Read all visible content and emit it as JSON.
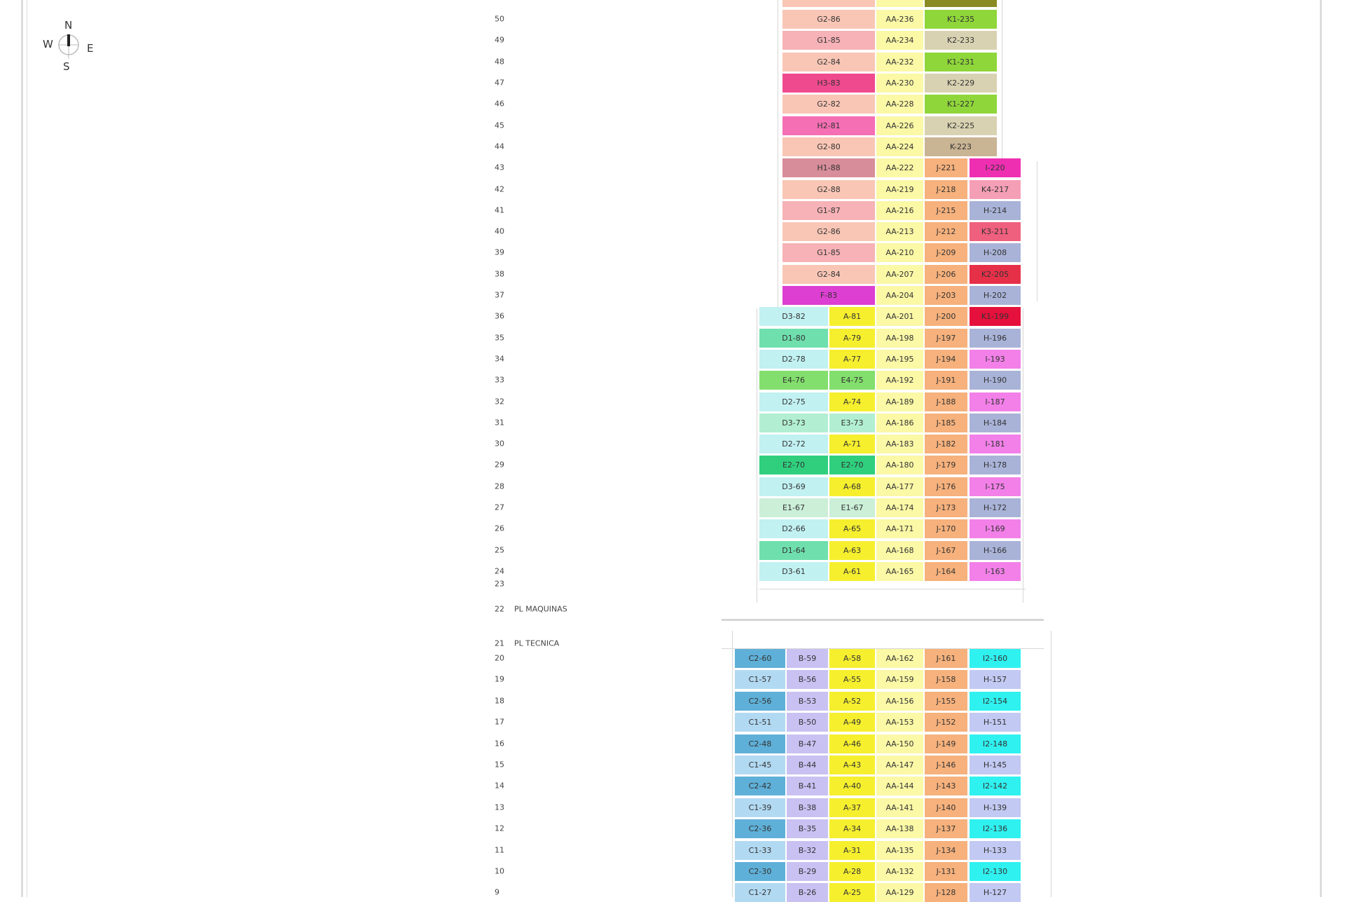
{
  "compass": {
    "n": "N",
    "s": "S",
    "e": "E",
    "w": "W"
  },
  "colors": {
    "G2": "#f9c6b6",
    "G1": "#f6b2b6",
    "H3": "#f04a8e",
    "H2": "#f56fb4",
    "H1": "#d88d9a",
    "F": "#dd3fd2",
    "AA": "#fbf8a6",
    "K1": "#8fd63a",
    "K2": "#d9d2b2",
    "K": "#c9b494",
    "KOL": "#8a8a22",
    "J": "#f6b17c",
    "I": "#ee2fb2",
    "K4": "#f59fb6",
    "H": "#a9b3d8",
    "K3": "#ef5f7e",
    "K2R": "#e63048",
    "K1R": "#e5103c",
    "D": "#c2f1f2",
    "D1": "#6fdfae",
    "E4": "#83df6d",
    "E3": "#b2efd2",
    "E2": "#2fcf7e",
    "E1": "#cbefd7",
    "A": "#f6ef2e",
    "IP": "#f280e8",
    "C2": "#5fb0d8",
    "C1": "#b2d9f2",
    "B": "#c9c1f2",
    "I2": "#2ff1f0",
    "HL": "#c2c9f2"
  },
  "floors": [
    {
      "label": "",
      "section": "top",
      "units": [
        {
          "code": "",
          "color": "G2"
        },
        {
          "code": "",
          "color": "AA"
        },
        {
          "code": "",
          "color": "KOL"
        }
      ]
    },
    {
      "label": "50",
      "section": "top",
      "units": [
        {
          "code": "G2-86",
          "color": "G2"
        },
        {
          "code": "AA-236",
          "color": "AA"
        },
        {
          "code": "K1-235",
          "color": "K1"
        }
      ]
    },
    {
      "label": "49",
      "section": "top",
      "units": [
        {
          "code": "G1-85",
          "color": "G1"
        },
        {
          "code": "AA-234",
          "color": "AA"
        },
        {
          "code": "K2-233",
          "color": "K2"
        }
      ]
    },
    {
      "label": "48",
      "section": "top",
      "units": [
        {
          "code": "G2-84",
          "color": "G2"
        },
        {
          "code": "AA-232",
          "color": "AA"
        },
        {
          "code": "K1-231",
          "color": "K1"
        }
      ]
    },
    {
      "label": "47",
      "section": "top",
      "units": [
        {
          "code": "H3-83",
          "color": "H3"
        },
        {
          "code": "AA-230",
          "color": "AA"
        },
        {
          "code": "K2-229",
          "color": "K2"
        }
      ]
    },
    {
      "label": "46",
      "section": "top",
      "units": [
        {
          "code": "G2-82",
          "color": "G2"
        },
        {
          "code": "AA-228",
          "color": "AA"
        },
        {
          "code": "K1-227",
          "color": "K1"
        }
      ]
    },
    {
      "label": "45",
      "section": "top",
      "units": [
        {
          "code": "H2-81",
          "color": "H2"
        },
        {
          "code": "AA-226",
          "color": "AA"
        },
        {
          "code": "K2-225",
          "color": "K2"
        }
      ]
    },
    {
      "label": "44",
      "section": "top",
      "units": [
        {
          "code": "G2-80",
          "color": "G2"
        },
        {
          "code": "AA-224",
          "color": "AA"
        },
        {
          "code": "K-223",
          "color": "K"
        }
      ]
    },
    {
      "label": "43",
      "section": "upper",
      "units": [
        {
          "code": "H1-88",
          "color": "H1"
        },
        {
          "code": "AA-222",
          "color": "AA"
        },
        {
          "code": "J-221",
          "color": "J"
        },
        {
          "code": "I-220",
          "color": "I"
        }
      ]
    },
    {
      "label": "42",
      "section": "upper",
      "units": [
        {
          "code": "G2-88",
          "color": "G2"
        },
        {
          "code": "AA-219",
          "color": "AA"
        },
        {
          "code": "J-218",
          "color": "J"
        },
        {
          "code": "K4-217",
          "color": "K4"
        }
      ]
    },
    {
      "label": "41",
      "section": "upper",
      "units": [
        {
          "code": "G1-87",
          "color": "G1"
        },
        {
          "code": "AA-216",
          "color": "AA"
        },
        {
          "code": "J-215",
          "color": "J"
        },
        {
          "code": "H-214",
          "color": "H"
        }
      ]
    },
    {
      "label": "40",
      "section": "upper",
      "units": [
        {
          "code": "G2-86",
          "color": "G2"
        },
        {
          "code": "AA-213",
          "color": "AA"
        },
        {
          "code": "J-212",
          "color": "J"
        },
        {
          "code": "K3-211",
          "color": "K3"
        }
      ]
    },
    {
      "label": "39",
      "section": "upper",
      "units": [
        {
          "code": "G1-85",
          "color": "G1"
        },
        {
          "code": "AA-210",
          "color": "AA"
        },
        {
          "code": "J-209",
          "color": "J"
        },
        {
          "code": "H-208",
          "color": "H"
        }
      ]
    },
    {
      "label": "38",
      "section": "upper",
      "units": [
        {
          "code": "G2-84",
          "color": "G2"
        },
        {
          "code": "AA-207",
          "color": "AA"
        },
        {
          "code": "J-206",
          "color": "J"
        },
        {
          "code": "K2-205",
          "color": "K2R"
        }
      ]
    },
    {
      "label": "37",
      "section": "upper",
      "units": [
        {
          "code": "F-83",
          "color": "F"
        },
        {
          "code": "AA-204",
          "color": "AA"
        },
        {
          "code": "J-203",
          "color": "J"
        },
        {
          "code": "H-202",
          "color": "H"
        }
      ]
    },
    {
      "label": "36",
      "section": "middle",
      "units": [
        {
          "code": "D3-82",
          "color": "D"
        },
        {
          "code": "A-81",
          "color": "A"
        },
        {
          "code": "AA-201",
          "color": "AA"
        },
        {
          "code": "J-200",
          "color": "J"
        },
        {
          "code": "K1-199",
          "color": "K1R"
        }
      ]
    },
    {
      "label": "35",
      "section": "middle",
      "units": [
        {
          "code": "D1-80",
          "color": "D1"
        },
        {
          "code": "A-79",
          "color": "A"
        },
        {
          "code": "AA-198",
          "color": "AA"
        },
        {
          "code": "J-197",
          "color": "J"
        },
        {
          "code": "H-196",
          "color": "H"
        }
      ]
    },
    {
      "label": "34",
      "section": "middle",
      "units": [
        {
          "code": "D2-78",
          "color": "D"
        },
        {
          "code": "A-77",
          "color": "A"
        },
        {
          "code": "AA-195",
          "color": "AA"
        },
        {
          "code": "J-194",
          "color": "J"
        },
        {
          "code": "I-193",
          "color": "IP"
        }
      ]
    },
    {
      "label": "33",
      "section": "middle",
      "units": [
        {
          "code": "E4-76",
          "color": "E4"
        },
        {
          "code": "E4-75",
          "color": "E4"
        },
        {
          "code": "AA-192",
          "color": "AA"
        },
        {
          "code": "J-191",
          "color": "J"
        },
        {
          "code": "H-190",
          "color": "H"
        }
      ]
    },
    {
      "label": "32",
      "section": "middle",
      "units": [
        {
          "code": "D2-75",
          "color": "D"
        },
        {
          "code": "A-74",
          "color": "A"
        },
        {
          "code": "AA-189",
          "color": "AA"
        },
        {
          "code": "J-188",
          "color": "J"
        },
        {
          "code": "I-187",
          "color": "IP"
        }
      ]
    },
    {
      "label": "31",
      "section": "middle",
      "units": [
        {
          "code": "D3-73",
          "color": "E3"
        },
        {
          "code": "E3-73",
          "color": "E3"
        },
        {
          "code": "AA-186",
          "color": "AA"
        },
        {
          "code": "J-185",
          "color": "J"
        },
        {
          "code": "H-184",
          "color": "H"
        }
      ]
    },
    {
      "label": "30",
      "section": "middle",
      "units": [
        {
          "code": "D2-72",
          "color": "D"
        },
        {
          "code": "A-71",
          "color": "A"
        },
        {
          "code": "AA-183",
          "color": "AA"
        },
        {
          "code": "J-182",
          "color": "J"
        },
        {
          "code": "I-181",
          "color": "IP"
        }
      ]
    },
    {
      "label": "29",
      "section": "middle",
      "units": [
        {
          "code": "E2-70",
          "color": "E2"
        },
        {
          "code": "E2-70",
          "color": "E2"
        },
        {
          "code": "AA-180",
          "color": "AA"
        },
        {
          "code": "J-179",
          "color": "J"
        },
        {
          "code": "H-178",
          "color": "H"
        }
      ]
    },
    {
      "label": "28",
      "section": "middle",
      "units": [
        {
          "code": "D3-69",
          "color": "D"
        },
        {
          "code": "A-68",
          "color": "A"
        },
        {
          "code": "AA-177",
          "color": "AA"
        },
        {
          "code": "J-176",
          "color": "J"
        },
        {
          "code": "I-175",
          "color": "IP"
        }
      ]
    },
    {
      "label": "27",
      "section": "middle",
      "units": [
        {
          "code": "E1-67",
          "color": "E1"
        },
        {
          "code": "E1-67",
          "color": "E1"
        },
        {
          "code": "AA-174",
          "color": "AA"
        },
        {
          "code": "J-173",
          "color": "J"
        },
        {
          "code": "H-172",
          "color": "H"
        }
      ]
    },
    {
      "label": "26",
      "section": "middle",
      "units": [
        {
          "code": "D2-66",
          "color": "D"
        },
        {
          "code": "A-65",
          "color": "A"
        },
        {
          "code": "AA-171",
          "color": "AA"
        },
        {
          "code": "J-170",
          "color": "J"
        },
        {
          "code": "I-169",
          "color": "IP"
        }
      ]
    },
    {
      "label": "25",
      "section": "middle",
      "units": [
        {
          "code": "D1-64",
          "color": "D1"
        },
        {
          "code": "A-63",
          "color": "A"
        },
        {
          "code": "AA-168",
          "color": "AA"
        },
        {
          "code": "J-167",
          "color": "J"
        },
        {
          "code": "H-166",
          "color": "H"
        }
      ]
    },
    {
      "label": "24",
      "section": "middle",
      "units": [
        {
          "code": "D3-61",
          "color": "D"
        },
        {
          "code": "A-61",
          "color": "A"
        },
        {
          "code": "AA-165",
          "color": "AA"
        },
        {
          "code": "J-164",
          "color": "J"
        },
        {
          "code": "I-163",
          "color": "IP"
        }
      ]
    },
    {
      "label": "23",
      "section": "empty",
      "units": []
    },
    {
      "label": "22",
      "note": "PL MAQUINAS",
      "section": "service",
      "units": []
    },
    {
      "label": "21",
      "note": "PL TECNICA",
      "section": "service",
      "units": []
    },
    {
      "label": "20",
      "section": "lower",
      "units": [
        {
          "code": "C2-60",
          "color": "C2"
        },
        {
          "code": "B-59",
          "color": "B"
        },
        {
          "code": "A-58",
          "color": "A"
        },
        {
          "code": "AA-162",
          "color": "AA"
        },
        {
          "code": "J-161",
          "color": "J"
        },
        {
          "code": "I2-160",
          "color": "I2"
        }
      ]
    },
    {
      "label": "19",
      "section": "lower",
      "units": [
        {
          "code": "C1-57",
          "color": "C1"
        },
        {
          "code": "B-56",
          "color": "B"
        },
        {
          "code": "A-55",
          "color": "A"
        },
        {
          "code": "AA-159",
          "color": "AA"
        },
        {
          "code": "J-158",
          "color": "J"
        },
        {
          "code": "H-157",
          "color": "HL"
        }
      ]
    },
    {
      "label": "18",
      "section": "lower",
      "units": [
        {
          "code": "C2-56",
          "color": "C2"
        },
        {
          "code": "B-53",
          "color": "B"
        },
        {
          "code": "A-52",
          "color": "A"
        },
        {
          "code": "AA-156",
          "color": "AA"
        },
        {
          "code": "J-155",
          "color": "J"
        },
        {
          "code": "I2-154",
          "color": "I2"
        }
      ]
    },
    {
      "label": "17",
      "section": "lower",
      "units": [
        {
          "code": "C1-51",
          "color": "C1"
        },
        {
          "code": "B-50",
          "color": "B"
        },
        {
          "code": "A-49",
          "color": "A"
        },
        {
          "code": "AA-153",
          "color": "AA"
        },
        {
          "code": "J-152",
          "color": "J"
        },
        {
          "code": "H-151",
          "color": "HL"
        }
      ]
    },
    {
      "label": "16",
      "section": "lower",
      "units": [
        {
          "code": "C2-48",
          "color": "C2"
        },
        {
          "code": "B-47",
          "color": "B"
        },
        {
          "code": "A-46",
          "color": "A"
        },
        {
          "code": "AA-150",
          "color": "AA"
        },
        {
          "code": "J-149",
          "color": "J"
        },
        {
          "code": "I2-148",
          "color": "I2"
        }
      ]
    },
    {
      "label": "15",
      "section": "lower",
      "units": [
        {
          "code": "C1-45",
          "color": "C1"
        },
        {
          "code": "B-44",
          "color": "B"
        },
        {
          "code": "A-43",
          "color": "A"
        },
        {
          "code": "AA-147",
          "color": "AA"
        },
        {
          "code": "J-146",
          "color": "J"
        },
        {
          "code": "H-145",
          "color": "HL"
        }
      ]
    },
    {
      "label": "14",
      "section": "lower",
      "units": [
        {
          "code": "C2-42",
          "color": "C2"
        },
        {
          "code": "B-41",
          "color": "B"
        },
        {
          "code": "A-40",
          "color": "A"
        },
        {
          "code": "AA-144",
          "color": "AA"
        },
        {
          "code": "J-143",
          "color": "J"
        },
        {
          "code": "I2-142",
          "color": "I2"
        }
      ]
    },
    {
      "label": "13",
      "section": "lower",
      "units": [
        {
          "code": "C1-39",
          "color": "C1"
        },
        {
          "code": "B-38",
          "color": "B"
        },
        {
          "code": "A-37",
          "color": "A"
        },
        {
          "code": "AA-141",
          "color": "AA"
        },
        {
          "code": "J-140",
          "color": "J"
        },
        {
          "code": "H-139",
          "color": "HL"
        }
      ]
    },
    {
      "label": "12",
      "section": "lower",
      "units": [
        {
          "code": "C2-36",
          "color": "C2"
        },
        {
          "code": "B-35",
          "color": "B"
        },
        {
          "code": "A-34",
          "color": "A"
        },
        {
          "code": "AA-138",
          "color": "AA"
        },
        {
          "code": "J-137",
          "color": "J"
        },
        {
          "code": "I2-136",
          "color": "I2"
        }
      ]
    },
    {
      "label": "11",
      "section": "lower",
      "units": [
        {
          "code": "C1-33",
          "color": "C1"
        },
        {
          "code": "B-32",
          "color": "B"
        },
        {
          "code": "A-31",
          "color": "A"
        },
        {
          "code": "AA-135",
          "color": "AA"
        },
        {
          "code": "J-134",
          "color": "J"
        },
        {
          "code": "H-133",
          "color": "HL"
        }
      ]
    },
    {
      "label": "10",
      "section": "lower",
      "units": [
        {
          "code": "C2-30",
          "color": "C2"
        },
        {
          "code": "B-29",
          "color": "B"
        },
        {
          "code": "A-28",
          "color": "A"
        },
        {
          "code": "AA-132",
          "color": "AA"
        },
        {
          "code": "J-131",
          "color": "J"
        },
        {
          "code": "I2-130",
          "color": "I2"
        }
      ]
    },
    {
      "label": "9",
      "section": "lower",
      "units": [
        {
          "code": "C1-27",
          "color": "C1"
        },
        {
          "code": "B-26",
          "color": "B"
        },
        {
          "code": "A-25",
          "color": "A"
        },
        {
          "code": "AA-129",
          "color": "AA"
        },
        {
          "code": "J-128",
          "color": "J"
        },
        {
          "code": "H-127",
          "color": "HL"
        }
      ]
    }
  ]
}
